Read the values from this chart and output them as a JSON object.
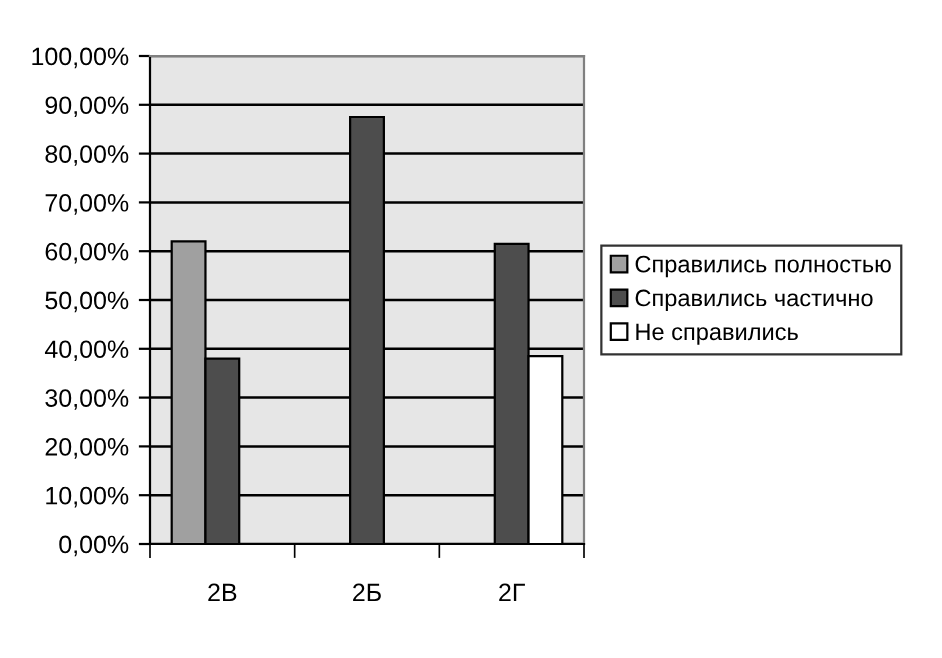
{
  "chart_data": {
    "type": "bar",
    "categories": [
      "2В",
      "2Б",
      "2Г"
    ],
    "series": [
      {
        "name": "Справились полностью",
        "color": "#a0a0a0",
        "values": [
          62,
          null,
          null
        ]
      },
      {
        "name": "Справились частично",
        "color": "#4d4d4d",
        "values": [
          38,
          87.5,
          61.5
        ]
      },
      {
        "name": "Не справились",
        "color": "#ffffff",
        "values": [
          null,
          null,
          38.5
        ]
      }
    ],
    "ylim": [
      0,
      100
    ],
    "yticks": [
      {
        "value": 0,
        "label": "0,00%"
      },
      {
        "value": 10,
        "label": "10,00%"
      },
      {
        "value": 20,
        "label": "20,00%"
      },
      {
        "value": 30,
        "label": "30,00%"
      },
      {
        "value": 40,
        "label": "40,00%"
      },
      {
        "value": 50,
        "label": "50,00%"
      },
      {
        "value": 60,
        "label": "60,00%"
      },
      {
        "value": 70,
        "label": "70,00%"
      },
      {
        "value": 80,
        "label": "80,00%"
      },
      {
        "value": 90,
        "label": "90,00%"
      },
      {
        "value": 100,
        "label": "100,00%"
      }
    ],
    "grid": "y",
    "legend": "right"
  }
}
